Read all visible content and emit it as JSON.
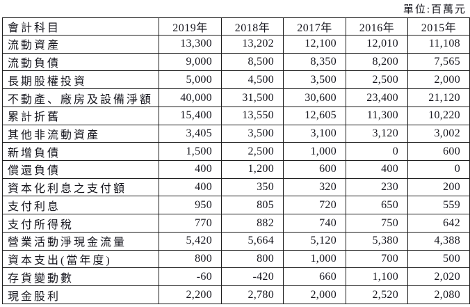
{
  "unit_label": "單位:百萬元",
  "table": {
    "header": [
      "會計科目",
      "2019年",
      "2018年",
      "2017年",
      "2016年",
      "2015年"
    ],
    "rows": [
      {
        "label": "流動資產",
        "values": [
          "13,300",
          "13,202",
          "12,100",
          "12,010",
          "11,108"
        ]
      },
      {
        "label": "流動負債",
        "values": [
          "9,000",
          "8,500",
          "8,350",
          "8,200",
          "7,565"
        ]
      },
      {
        "label": "長期股權投資",
        "values": [
          "5,000",
          "4,500",
          "3,500",
          "2,500",
          "2,000"
        ]
      },
      {
        "label": "不動產、廠房及設備淨額",
        "values": [
          "40,000",
          "31,500",
          "30,600",
          "23,400",
          "21,120"
        ]
      },
      {
        "label": "累計折舊",
        "values": [
          "15,400",
          "13,550",
          "12,605",
          "11,300",
          "10,220"
        ]
      },
      {
        "label": "其他非流動資產",
        "values": [
          "3,405",
          "3,500",
          "3,100",
          "3,120",
          "3,002"
        ]
      },
      {
        "label": "新增負債",
        "values": [
          "1,500",
          "2,500",
          "1,000",
          "0",
          "600"
        ]
      },
      {
        "label": "償還負債",
        "values": [
          "400",
          "1,200",
          "600",
          "400",
          "0"
        ]
      },
      {
        "label": "資本化利息之支付額",
        "values": [
          "400",
          "350",
          "320",
          "230",
          "200"
        ]
      },
      {
        "label": "支付利息",
        "values": [
          "950",
          "805",
          "720",
          "650",
          "559"
        ]
      },
      {
        "label": "支付所得稅",
        "values": [
          "770",
          "882",
          "740",
          "750",
          "642"
        ]
      },
      {
        "label": "營業活動淨現金流量",
        "values": [
          "5,420",
          "5,664",
          "5,120",
          "5,380",
          "4,388"
        ]
      },
      {
        "label": "資本支出(當年度)",
        "values": [
          "800",
          "800",
          "1,000",
          "700",
          "500"
        ]
      },
      {
        "label": "存貨變動數",
        "values": [
          "-60",
          "-420",
          "660",
          "1,100",
          "2,020"
        ]
      },
      {
        "label": "現金股利",
        "values": [
          "2,200",
          "2,780",
          "2,000",
          "2,520",
          "2,080"
        ]
      }
    ]
  }
}
